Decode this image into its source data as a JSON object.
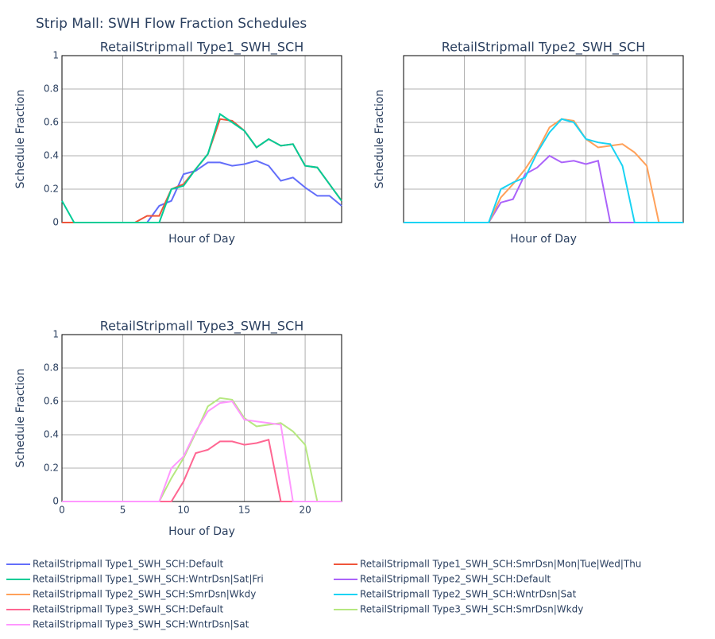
{
  "title": "Strip Mall: SWH Flow Fraction Schedules",
  "legend": "bottom",
  "chart_data": [
    {
      "type": "line",
      "title": "RetailStripmall Type1_SWH_SCH",
      "xlabel": "Hour of Day",
      "ylabel": "Schedule Fraction",
      "x": [
        0,
        1,
        2,
        3,
        4,
        5,
        6,
        7,
        8,
        9,
        10,
        11,
        12,
        13,
        14,
        15,
        16,
        17,
        18,
        19,
        20,
        21,
        22,
        23
      ],
      "xlim": [
        0,
        23
      ],
      "ylim": [
        0,
        1
      ],
      "xticks": [
        0,
        5,
        10,
        15,
        20
      ],
      "yticks": [
        0,
        0.2,
        0.4,
        0.6,
        0.8,
        1
      ],
      "grid": true,
      "show_xtick_labels": false,
      "series": [
        {
          "name": "RetailStripmall Type1_SWH_SCH:Default",
          "color": "#636efa",
          "values": [
            0,
            0,
            0,
            0,
            0,
            0,
            0,
            0,
            0.1,
            0.13,
            0.29,
            0.31,
            0.36,
            0.36,
            0.34,
            0.35,
            0.37,
            0.34,
            0.25,
            0.27,
            0.21,
            0.16,
            0.16,
            0.1
          ]
        },
        {
          "name": "RetailStripmall Type1_SWH_SCH:SmrDsn|Mon|Tue|Wed|Thu",
          "color": "#EF553B",
          "values": [
            0,
            0,
            0,
            0,
            0,
            0,
            0,
            0.04,
            0.04,
            0.2,
            0.23,
            0.32,
            0.41,
            0.62,
            0.61,
            0.55,
            0.45,
            0.5,
            0.46,
            0.47,
            0.34,
            0.33,
            0.23,
            0.13
          ]
        },
        {
          "name": "RetailStripmall Type1_SWH_SCH:WntrDsn|Sat|Fri",
          "color": "#00cc96",
          "values": [
            0.13,
            0,
            0,
            0,
            0,
            0,
            0,
            0,
            0,
            0.2,
            0.22,
            0.32,
            0.41,
            0.65,
            0.6,
            0.55,
            0.45,
            0.5,
            0.46,
            0.47,
            0.34,
            0.33,
            0.23,
            0.13
          ]
        }
      ]
    },
    {
      "type": "line",
      "title": "RetailStripmall Type2_SWH_SCH",
      "xlabel": "Hour of Day",
      "ylabel": "Schedule Fraction",
      "x": [
        0,
        1,
        2,
        3,
        4,
        5,
        6,
        7,
        8,
        9,
        10,
        11,
        12,
        13,
        14,
        15,
        16,
        17,
        18,
        19,
        20,
        21,
        22,
        23
      ],
      "xlim": [
        0,
        23
      ],
      "ylim": [
        0,
        1
      ],
      "xticks": [
        0,
        5,
        10,
        15,
        20
      ],
      "yticks": [
        0,
        0.2,
        0.4,
        0.6,
        0.8,
        1
      ],
      "grid": true,
      "show_xtick_labels": false,
      "show_ytick_labels": false,
      "series": [
        {
          "name": "RetailStripmall Type2_SWH_SCH:Default",
          "color": "#ab63fa",
          "values": [
            0,
            0,
            0,
            0,
            0,
            0,
            0,
            0,
            0.12,
            0.14,
            0.29,
            0.33,
            0.4,
            0.36,
            0.37,
            0.35,
            0.37,
            0,
            0,
            0,
            0,
            0,
            0,
            0
          ]
        },
        {
          "name": "RetailStripmall Type2_SWH_SCH:SmrDsn|Wkdy",
          "color": "#FFA15A",
          "values": [
            0,
            0,
            0,
            0,
            0,
            0,
            0,
            0,
            0.15,
            0.23,
            0.32,
            0.43,
            0.57,
            0.62,
            0.61,
            0.5,
            0.45,
            0.46,
            0.47,
            0.42,
            0.34,
            0,
            0,
            0
          ]
        },
        {
          "name": "RetailStripmall Type2_SWH_SCH:WntrDsn|Sat",
          "color": "#19d3f3",
          "values": [
            0,
            0,
            0,
            0,
            0,
            0,
            0,
            0,
            0.2,
            0.24,
            0.27,
            0.42,
            0.54,
            0.62,
            0.6,
            0.5,
            0.48,
            0.47,
            0.34,
            0,
            0,
            0,
            0,
            0
          ]
        }
      ]
    },
    {
      "type": "line",
      "title": "RetailStripmall Type3_SWH_SCH",
      "xlabel": "Hour of Day",
      "ylabel": "Schedule Fraction",
      "x": [
        0,
        1,
        2,
        3,
        4,
        5,
        6,
        7,
        8,
        9,
        10,
        11,
        12,
        13,
        14,
        15,
        16,
        17,
        18,
        19,
        20,
        21,
        22,
        23
      ],
      "xlim": [
        0,
        23
      ],
      "ylim": [
        0,
        1
      ],
      "xticks": [
        0,
        5,
        10,
        15,
        20
      ],
      "yticks": [
        0,
        0.2,
        0.4,
        0.6,
        0.8,
        1
      ],
      "grid": true,
      "show_xtick_labels": true,
      "series": [
        {
          "name": "RetailStripmall Type3_SWH_SCH:Default",
          "color": "#FF6692",
          "values": [
            0,
            0,
            0,
            0,
            0,
            0,
            0,
            0,
            0,
            0,
            0.12,
            0.29,
            0.31,
            0.36,
            0.36,
            0.34,
            0.35,
            0.37,
            0,
            0,
            0,
            0,
            0,
            0
          ]
        },
        {
          "name": "RetailStripmall Type3_SWH_SCH:SmrDsn|Wkdy",
          "color": "#B6E880",
          "values": [
            0,
            0,
            0,
            0,
            0,
            0,
            0,
            0,
            0,
            0.14,
            0.26,
            0.41,
            0.57,
            0.62,
            0.61,
            0.5,
            0.45,
            0.46,
            0.47,
            0.42,
            0.34,
            0,
            0,
            0
          ]
        },
        {
          "name": "RetailStripmall Type3_SWH_SCH:WntrDsn|Sat",
          "color": "#FF97FF",
          "values": [
            0,
            0,
            0,
            0,
            0,
            0,
            0,
            0,
            0,
            0.2,
            0.27,
            0.42,
            0.54,
            0.59,
            0.6,
            0.49,
            0.48,
            0.47,
            0.46,
            0,
            0,
            0,
            0,
            0
          ]
        }
      ]
    }
  ]
}
